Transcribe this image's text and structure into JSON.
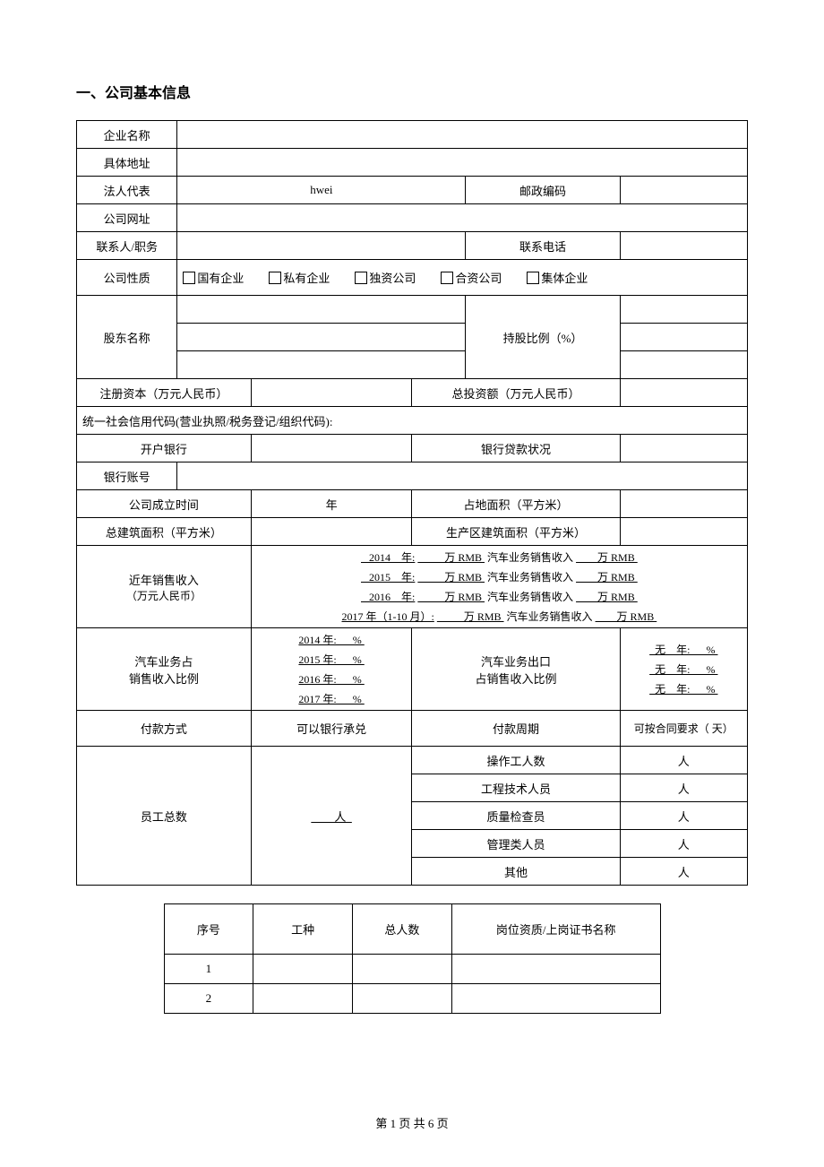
{
  "section_title": "一、公司基本信息",
  "labels": {
    "company_name": "企业名称",
    "address": "具体地址",
    "legal_rep": "法人代表",
    "legal_rep_value": "hwei",
    "postal_code": "邮政编码",
    "website": "公司网址",
    "contact": "联系人/职务",
    "phone": "联系电话",
    "nature": "公司性质",
    "shareholder": "股东名称",
    "shareholding": "持股比例（%）",
    "reg_capital": "注册资本（万元人民币）",
    "total_invest": "总投资额（万元人民币）",
    "uscc": "统一社会信用代码(营业执照/税务登记/组织代码):",
    "bank": "开户银行",
    "loan_status": "银行贷款状况",
    "bank_account": "银行账号",
    "founded": "公司成立时间",
    "founded_value": "年",
    "land_area": "占地面积（平方米）",
    "total_building": "总建筑面积（平方米）",
    "prod_building": "生产区建筑面积（平方米）",
    "sales_recent": "近年销售收入",
    "sales_recent_sub": "（万元人民币）",
    "auto_ratio_l1": "汽车业务占",
    "auto_ratio_l2": "销售收入比例",
    "auto_export_l1": "汽车业务出口",
    "auto_export_l2": "占销售收入比例",
    "payment_method": "付款方式",
    "payment_method_value": "可以银行承兑",
    "payment_cycle": "付款周期",
    "payment_cycle_value": "可按合同要求（ 天）",
    "employees": "员工总数",
    "employees_value": "        人  ",
    "op_workers": "操作工人数",
    "engineers": "工程技术人员",
    "qc": "质量检查员",
    "managers": "管理类人员",
    "others": "其他",
    "person": "人"
  },
  "nature_options": [
    "国有企业",
    "私有企业",
    "独资公司",
    "合资公司",
    "集体企业"
  ],
  "sales_lines": [
    {
      "year": "   2014    年:",
      "mid": "          万 RMB ",
      "auto": "汽车业务销售收入",
      "tail": "        万 RMB "
    },
    {
      "year": "   2015    年:",
      "mid": "          万 RMB ",
      "auto": "汽车业务销售收入",
      "tail": "        万 RMB "
    },
    {
      "year": "   2016    年:",
      "mid": "          万 RMB ",
      "auto": "汽车业务销售收入",
      "tail": "        万 RMB "
    },
    {
      "year": "2017 年（1-10 月）:",
      "mid": "          万 RMB ",
      "auto": "汽车业务销售收入",
      "tail": "        万 RMB "
    }
  ],
  "ratio_left": [
    "2014 年:      % ",
    "2015 年:      % ",
    "2016 年:      % ",
    "2017 年:      % "
  ],
  "ratio_right": [
    "  无    年:      % ",
    "  无    年:      % ",
    "  无    年:      % "
  ],
  "table2": {
    "headers": [
      "序号",
      "工种",
      "总人数",
      "岗位资质/上岗证书名称"
    ],
    "rows": [
      [
        "1",
        "",
        "",
        ""
      ],
      [
        "2",
        "",
        "",
        ""
      ]
    ]
  },
  "footer": "第 1 页 共 6 页"
}
